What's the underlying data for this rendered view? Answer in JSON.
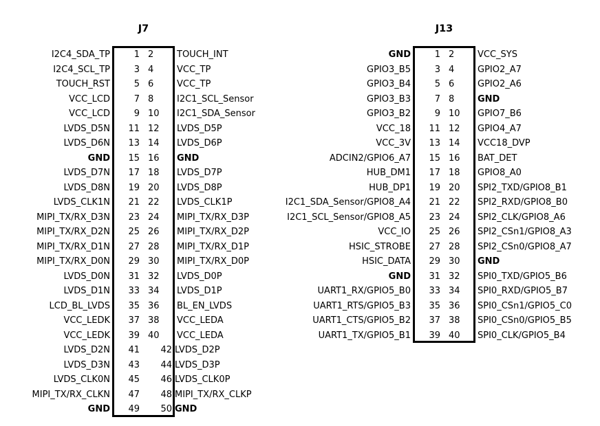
{
  "colors": {
    "background": "#ffffff",
    "text": "#000000",
    "box_border": "#000000"
  },
  "connectors": [
    {
      "id": "J7",
      "title": "J7",
      "pin_count": 50,
      "rows": [
        {
          "left": "I2C4_SDA_TP",
          "odd": "1",
          "even": "2",
          "right": "TOUCH_INT",
          "left_bold": false,
          "right_bold": false,
          "flush": false
        },
        {
          "left": "I2C4_SCL_TP",
          "odd": "3",
          "even": "4",
          "right": "VCC_TP",
          "left_bold": false,
          "right_bold": false,
          "flush": false
        },
        {
          "left": "TOUCH_RST",
          "odd": "5",
          "even": "6",
          "right": "VCC_TP",
          "left_bold": false,
          "right_bold": false,
          "flush": false
        },
        {
          "left": "VCC_LCD",
          "odd": "7",
          "even": "8",
          "right": "I2C1_SCL_Sensor",
          "left_bold": false,
          "right_bold": false,
          "flush": false
        },
        {
          "left": "VCC_LCD",
          "odd": "9",
          "even": "10",
          "right": "I2C1_SDA_Sensor",
          "left_bold": false,
          "right_bold": false,
          "flush": false
        },
        {
          "left": "LVDS_D5N",
          "odd": "11",
          "even": "12",
          "right": "LVDS_D5P",
          "left_bold": false,
          "right_bold": false,
          "flush": false
        },
        {
          "left": "LVDS_D6N",
          "odd": "13",
          "even": "14",
          "right": "LVDS_D6P",
          "left_bold": false,
          "right_bold": false,
          "flush": false
        },
        {
          "left": "GND",
          "odd": "15",
          "even": "16",
          "right": "GND",
          "left_bold": true,
          "right_bold": true,
          "flush": false
        },
        {
          "left": "LVDS_D7N",
          "odd": "17",
          "even": "18",
          "right": "LVDS_D7P",
          "left_bold": false,
          "right_bold": false,
          "flush": false
        },
        {
          "left": "LVDS_D8N",
          "odd": "19",
          "even": "20",
          "right": "LVDS_D8P",
          "left_bold": false,
          "right_bold": false,
          "flush": false
        },
        {
          "left": "LVDS_CLK1N",
          "odd": "21",
          "even": "22",
          "right": "LVDS_CLK1P",
          "left_bold": false,
          "right_bold": false,
          "flush": false
        },
        {
          "left": "MIPI_TX/RX_D3N",
          "odd": "23",
          "even": "24",
          "right": "MIPI_TX/RX_D3P",
          "left_bold": false,
          "right_bold": false,
          "flush": false
        },
        {
          "left": "MIPI_TX/RX_D2N",
          "odd": "25",
          "even": "26",
          "right": "MIPI_TX/RX_D2P",
          "left_bold": false,
          "right_bold": false,
          "flush": false
        },
        {
          "left": "MIPI_TX/RX_D1N",
          "odd": "27",
          "even": "28",
          "right": "MIPI_TX/RX_D1P",
          "left_bold": false,
          "right_bold": false,
          "flush": false
        },
        {
          "left": "MIPI_TX/RX_D0N",
          "odd": "29",
          "even": "30",
          "right": "MIPI_TX/RX_D0P",
          "left_bold": false,
          "right_bold": false,
          "flush": false
        },
        {
          "left": "LVDS_D0N",
          "odd": "31",
          "even": "32",
          "right": "LVDS_D0P",
          "left_bold": false,
          "right_bold": false,
          "flush": false
        },
        {
          "left": "LVDS_D1N",
          "odd": "33",
          "even": "34",
          "right": "LVDS_D1P",
          "left_bold": false,
          "right_bold": false,
          "flush": false
        },
        {
          "left": "LCD_BL_LVDS",
          "odd": "35",
          "even": "36",
          "right": "BL_EN_LVDS",
          "left_bold": false,
          "right_bold": false,
          "flush": false
        },
        {
          "left": "VCC_LEDK",
          "odd": "37",
          "even": "38",
          "right": "VCC_LEDA",
          "left_bold": false,
          "right_bold": false,
          "flush": false
        },
        {
          "left": "VCC_LEDK",
          "odd": "39",
          "even": "40",
          "right": "VCC_LEDA",
          "left_bold": false,
          "right_bold": false,
          "flush": false
        },
        {
          "left": "LVDS_D2N",
          "odd": "41",
          "even": "42",
          "right": "LVDS_D2P",
          "left_bold": false,
          "right_bold": false,
          "flush": true
        },
        {
          "left": "LVDS_D3N",
          "odd": "43",
          "even": "44",
          "right": "LVDS_D3P",
          "left_bold": false,
          "right_bold": false,
          "flush": true
        },
        {
          "left": "LVDS_CLK0N",
          "odd": "45",
          "even": "46",
          "right": "LVDS_CLK0P",
          "left_bold": false,
          "right_bold": false,
          "flush": true
        },
        {
          "left": "MIPI_TX/RX_CLKN",
          "odd": "47",
          "even": "48",
          "right": "MIPI_TX/RX_CLKP",
          "left_bold": false,
          "right_bold": false,
          "flush": true
        },
        {
          "left": "GND",
          "odd": "49",
          "even": "50",
          "right": "GND",
          "left_bold": true,
          "right_bold": true,
          "flush": true
        }
      ]
    },
    {
      "id": "J13",
      "title": "J13",
      "pin_count": 40,
      "rows": [
        {
          "left": "GND",
          "odd": "1",
          "even": "2",
          "right": "VCC_SYS",
          "left_bold": true,
          "right_bold": false,
          "flush": false
        },
        {
          "left": "GPIO3_B5",
          "odd": "3",
          "even": "4",
          "right": "GPIO2_A7",
          "left_bold": false,
          "right_bold": false,
          "flush": false
        },
        {
          "left": "GPIO3_B4",
          "odd": "5",
          "even": "6",
          "right": "GPIO2_A6",
          "left_bold": false,
          "right_bold": false,
          "flush": false
        },
        {
          "left": "GPIO3_B3",
          "odd": "7",
          "even": "8",
          "right": "GND",
          "left_bold": false,
          "right_bold": true,
          "flush": false
        },
        {
          "left": "GPIO3_B2",
          "odd": "9",
          "even": "10",
          "right": "GPIO7_B6",
          "left_bold": false,
          "right_bold": false,
          "flush": false
        },
        {
          "left": "VCC_18",
          "odd": "11",
          "even": "12",
          "right": "GPIO4_A7",
          "left_bold": false,
          "right_bold": false,
          "flush": false
        },
        {
          "left": "VCC_3V",
          "odd": "13",
          "even": "14",
          "right": "VCC18_DVP",
          "left_bold": false,
          "right_bold": false,
          "flush": false
        },
        {
          "left": "ADCIN2/GPIO6_A7",
          "odd": "15",
          "even": "16",
          "right": "BAT_DET",
          "left_bold": false,
          "right_bold": false,
          "flush": false
        },
        {
          "left": "HUB_DM1",
          "odd": "17",
          "even": "18",
          "right": "GPIO8_A0",
          "left_bold": false,
          "right_bold": false,
          "flush": false
        },
        {
          "left": "HUB_DP1",
          "odd": "19",
          "even": "20",
          "right": "SPI2_TXD/GPIO8_B1",
          "left_bold": false,
          "right_bold": false,
          "flush": false
        },
        {
          "left": "I2C1_SDA_Sensor/GPIO8_A4",
          "odd": "21",
          "even": "22",
          "right": "SPI2_RXD/GPIO8_B0",
          "left_bold": false,
          "right_bold": false,
          "flush": false
        },
        {
          "left": "I2C1_SCL_Sensor/GPIO8_A5",
          "odd": "23",
          "even": "24",
          "right": "SPI2_CLK/GPIO8_A6",
          "left_bold": false,
          "right_bold": false,
          "flush": false
        },
        {
          "left": "VCC_IO",
          "odd": "25",
          "even": "26",
          "right": "SPI2_CSn1/GPIO8_A3",
          "left_bold": false,
          "right_bold": false,
          "flush": false
        },
        {
          "left": "HSIC_STROBE",
          "odd": "27",
          "even": "28",
          "right": "SPI2_CSn0/GPIO8_A7",
          "left_bold": false,
          "right_bold": false,
          "flush": false
        },
        {
          "left": "HSIC_DATA",
          "odd": "29",
          "even": "30",
          "right": "GND",
          "left_bold": false,
          "right_bold": true,
          "flush": false
        },
        {
          "left": "GND",
          "odd": "31",
          "even": "32",
          "right": "SPI0_TXD/GPIO5_B6",
          "left_bold": true,
          "right_bold": false,
          "flush": false
        },
        {
          "left": "UART1_RX/GPIO5_B0",
          "odd": "33",
          "even": "34",
          "right": "SPI0_RXD/GPIO5_B7",
          "left_bold": false,
          "right_bold": false,
          "flush": false
        },
        {
          "left": "UART1_RTS/GPIO5_B3",
          "odd": "35",
          "even": "36",
          "right": "SPI0_CSn1/GPIO5_C0",
          "left_bold": false,
          "right_bold": false,
          "flush": false
        },
        {
          "left": "UART1_CTS/GPIO5_B2",
          "odd": "37",
          "even": "38",
          "right": "SPI0_CSn0/GPIO5_B5",
          "left_bold": false,
          "right_bold": false,
          "flush": false
        },
        {
          "left": "UART1_TX/GPIO5_B1",
          "odd": "39",
          "even": "40",
          "right": "SPI0_CLK/GPIO5_B4",
          "left_bold": false,
          "right_bold": false,
          "flush": false
        }
      ]
    }
  ]
}
